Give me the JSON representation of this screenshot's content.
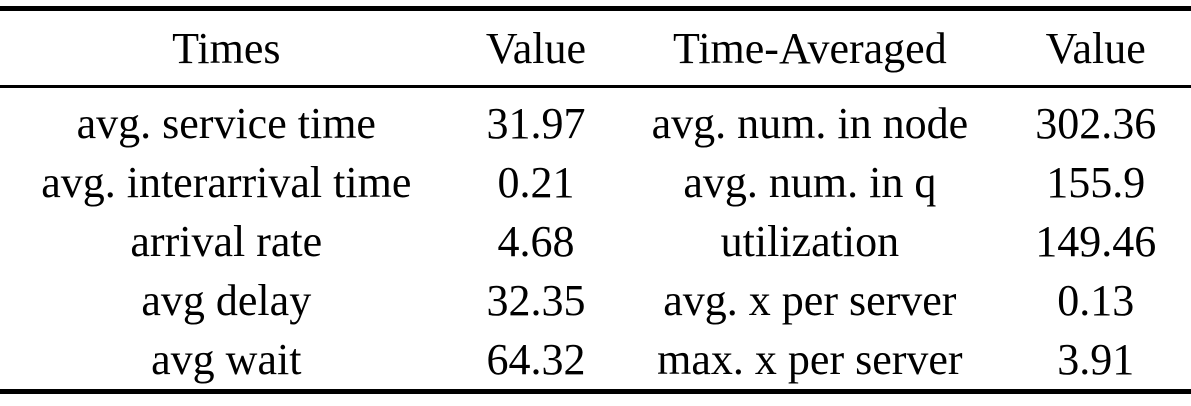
{
  "colors": {
    "background": "#ffffff",
    "text": "#000000",
    "rule": "#000000"
  },
  "table": {
    "columns": [
      "Times",
      "Value",
      "Time-Averaged",
      "Value"
    ],
    "rows": [
      [
        "avg. service time",
        "31.97",
        "avg. num. in node",
        "302.36"
      ],
      [
        "avg. interarrival time",
        "0.21",
        "avg. num. in q",
        "155.9"
      ],
      [
        "arrival rate",
        "4.68",
        "utilization",
        "149.46"
      ],
      [
        "avg delay",
        "32.35",
        "avg. x per server",
        "0.13"
      ],
      [
        "avg wait",
        "64.32",
        "max. x per server",
        "3.91"
      ]
    ]
  },
  "chart_data": {
    "type": "table",
    "title": "",
    "columns": [
      "Times",
      "Value",
      "Time-Averaged",
      "Value"
    ],
    "rows": [
      {
        "times_metric": "avg. service time",
        "times_value": 31.97,
        "time_averaged_metric": "avg. num. in node",
        "time_averaged_value": 302.36
      },
      {
        "times_metric": "avg. interarrival time",
        "times_value": 0.21,
        "time_averaged_metric": "avg. num. in q",
        "time_averaged_value": 155.9
      },
      {
        "times_metric": "arrival rate",
        "times_value": 4.68,
        "time_averaged_metric": "utilization",
        "time_averaged_value": 149.46
      },
      {
        "times_metric": "avg delay",
        "times_value": 32.35,
        "time_averaged_metric": "avg. x per server",
        "time_averaged_value": 0.13
      },
      {
        "times_metric": "avg wait",
        "times_value": 64.32,
        "time_averaged_metric": "max. x per server",
        "time_averaged_value": 3.91
      }
    ]
  }
}
